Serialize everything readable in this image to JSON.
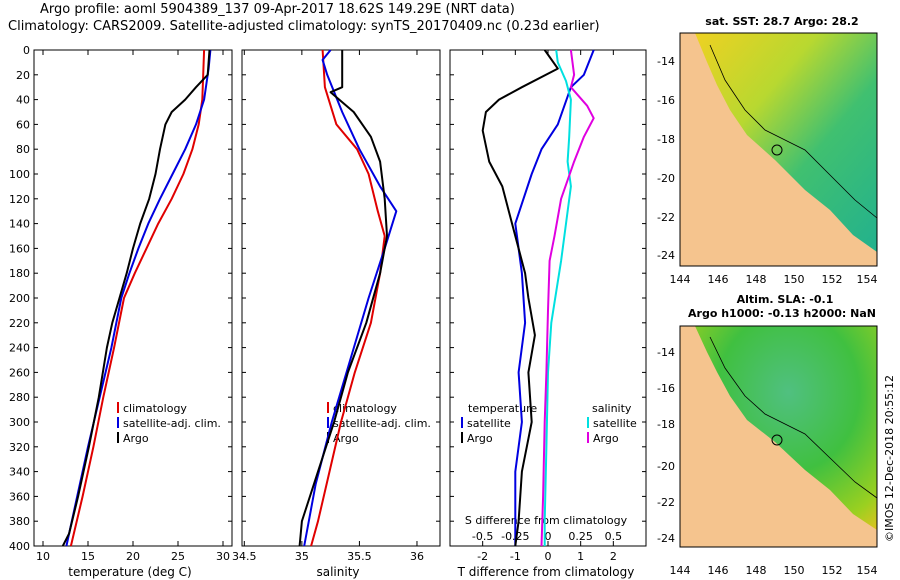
{
  "header": {
    "title_line1": "Argo profile: aoml 5904389_137 09-Apr-2017 18.62S 149.29E (NRT data)",
    "title_line2": "Climatology: CARS2009. Satellite-adjusted climatology: synTS_20170409.nc (0.23d earlier)",
    "credit": "©IMOS 12-Dec-2018 20:55:12"
  },
  "colors": {
    "climatology": "#e00000",
    "satellite": "#0000e0",
    "argo": "#000000",
    "sat_salinity": "#00e0e0",
    "clim_salinity": "#e000e0"
  },
  "chart_data": [
    {
      "type": "line",
      "title": "",
      "xlabel": "temperature (deg C)",
      "ylabel": "",
      "xlim": [
        9,
        31
      ],
      "ylim": [
        400,
        0
      ],
      "xticks": [
        10,
        15,
        20,
        25,
        30
      ],
      "yticks": [
        0,
        20,
        40,
        60,
        80,
        100,
        120,
        140,
        160,
        180,
        200,
        220,
        240,
        260,
        280,
        300,
        320,
        340,
        360,
        380,
        400
      ],
      "legend": [
        "climatology",
        "satellite-adj. clim.",
        "Argo"
      ],
      "series": [
        {
          "name": "climatology",
          "color": "#e00000",
          "points": [
            [
              27.9,
              0
            ],
            [
              27.7,
              40
            ],
            [
              27.3,
              60
            ],
            [
              26.6,
              80
            ],
            [
              25.6,
              100
            ],
            [
              24.3,
              120
            ],
            [
              22.8,
              140
            ],
            [
              21.5,
              160
            ],
            [
              20.2,
              180
            ],
            [
              19.0,
              200
            ],
            [
              17.9,
              240
            ],
            [
              16.7,
              280
            ],
            [
              15.6,
              320
            ],
            [
              14.4,
              360
            ],
            [
              13.1,
              400
            ]
          ]
        },
        {
          "name": "satellite-adj. clim.",
          "color": "#0000e0",
          "points": [
            [
              28.6,
              0
            ],
            [
              28.4,
              15
            ],
            [
              27.9,
              40
            ],
            [
              27.0,
              60
            ],
            [
              25.8,
              80
            ],
            [
              24.4,
              100
            ],
            [
              23.0,
              120
            ],
            [
              21.7,
              140
            ],
            [
              20.6,
              160
            ],
            [
              19.6,
              180
            ],
            [
              18.7,
              200
            ],
            [
              17.6,
              240
            ],
            [
              16.3,
              280
            ],
            [
              15.0,
              320
            ],
            [
              13.8,
              360
            ],
            [
              12.6,
              400
            ]
          ]
        },
        {
          "name": "Argo",
          "color": "#000000",
          "points": [
            [
              28.5,
              0
            ],
            [
              28.3,
              20
            ],
            [
              27.0,
              30
            ],
            [
              25.8,
              40
            ],
            [
              24.3,
              50
            ],
            [
              23.6,
              60
            ],
            [
              23.0,
              80
            ],
            [
              22.5,
              100
            ],
            [
              21.8,
              120
            ],
            [
              20.8,
              140
            ],
            [
              20.0,
              160
            ],
            [
              19.3,
              180
            ],
            [
              18.5,
              200
            ],
            [
              17.7,
              220
            ],
            [
              17.1,
              240
            ],
            [
              16.2,
              280
            ],
            [
              15.1,
              320
            ],
            [
              13.9,
              360
            ],
            [
              12.9,
              390
            ],
            [
              12.2,
              400
            ]
          ]
        }
      ]
    },
    {
      "type": "line",
      "title": "",
      "xlabel": "salinity",
      "ylabel": "",
      "xlim": [
        34.48,
        36.2
      ],
      "ylim": [
        400,
        0
      ],
      "xticks": [
        34.5,
        35,
        35.5,
        36
      ],
      "xtick_labels": [
        "34.5",
        "35",
        "35.5",
        "36"
      ],
      "legend": [
        "climatology",
        "satellite-adj. clim.",
        "Argo"
      ],
      "series": [
        {
          "name": "climatology",
          "color": "#e00000",
          "points": [
            [
              35.18,
              0
            ],
            [
              35.2,
              30
            ],
            [
              35.3,
              60
            ],
            [
              35.48,
              80
            ],
            [
              35.58,
              100
            ],
            [
              35.66,
              130
            ],
            [
              35.72,
              150
            ],
            [
              35.68,
              180
            ],
            [
              35.6,
              220
            ],
            [
              35.46,
              260
            ],
            [
              35.34,
              300
            ],
            [
              35.24,
              340
            ],
            [
              35.14,
              380
            ],
            [
              35.08,
              400
            ]
          ]
        },
        {
          "name": "satellite-adj. clim.",
          "color": "#0000e0",
          "points": [
            [
              35.25,
              0
            ],
            [
              35.18,
              8
            ],
            [
              35.22,
              20
            ],
            [
              35.35,
              50
            ],
            [
              35.5,
              80
            ],
            [
              35.68,
              110
            ],
            [
              35.82,
              130
            ],
            [
              35.72,
              160
            ],
            [
              35.58,
              200
            ],
            [
              35.42,
              250
            ],
            [
              35.26,
              300
            ],
            [
              35.12,
              350
            ],
            [
              35.02,
              400
            ]
          ]
        },
        {
          "name": "Argo",
          "color": "#000000",
          "points": [
            [
              35.35,
              0
            ],
            [
              35.35,
              30
            ],
            [
              35.25,
              34
            ],
            [
              35.45,
              50
            ],
            [
              35.6,
              70
            ],
            [
              35.68,
              90
            ],
            [
              35.72,
              120
            ],
            [
              35.74,
              150
            ],
            [
              35.68,
              180
            ],
            [
              35.56,
              220
            ],
            [
              35.4,
              260
            ],
            [
              35.28,
              300
            ],
            [
              35.14,
              340
            ],
            [
              35.0,
              380
            ],
            [
              34.98,
              400
            ]
          ]
        }
      ]
    },
    {
      "type": "line",
      "title": "",
      "xlabel": "T difference from climatology",
      "xlabel2": "S difference from climatology",
      "ylabel": "",
      "xlim": [
        -3,
        3
      ],
      "ylim": [
        400,
        0
      ],
      "xticks": [
        -2,
        -1,
        0,
        1,
        2
      ],
      "xtick_labels2": [
        "-0.5",
        "-0.25",
        "0",
        "0.25",
        "0.5"
      ],
      "legend_temperature": [
        "satellite",
        "Argo"
      ],
      "legend_salinity": [
        "satellite",
        "Argo"
      ],
      "legend_titles": [
        "temperature",
        "salinity"
      ],
      "series": [
        {
          "name": "temperature satellite",
          "color": "#0000e0",
          "points": [
            [
              1.4,
              0
            ],
            [
              1.1,
              20
            ],
            [
              0.7,
              30
            ],
            [
              0.3,
              60
            ],
            [
              -0.2,
              80
            ],
            [
              -0.5,
              100
            ],
            [
              -1.0,
              140
            ],
            [
              -0.8,
              180
            ],
            [
              -0.7,
              220
            ],
            [
              -0.9,
              260
            ],
            [
              -0.8,
              300
            ],
            [
              -1.0,
              340
            ],
            [
              -1.0,
              380
            ],
            [
              -1.0,
              400
            ]
          ]
        },
        {
          "name": "temperature Argo",
          "color": "#000000",
          "points": [
            [
              -0.1,
              0
            ],
            [
              0.3,
              15
            ],
            [
              -0.8,
              30
            ],
            [
              -1.5,
              40
            ],
            [
              -1.9,
              50
            ],
            [
              -2.0,
              65
            ],
            [
              -1.8,
              90
            ],
            [
              -1.4,
              110
            ],
            [
              -1.2,
              130
            ],
            [
              -1.0,
              150
            ],
            [
              -0.7,
              180
            ],
            [
              -0.6,
              200
            ],
            [
              -0.4,
              230
            ],
            [
              -0.6,
              260
            ],
            [
              -0.5,
              300
            ],
            [
              -0.8,
              340
            ],
            [
              -0.9,
              380
            ],
            [
              -1.0,
              400
            ]
          ]
        },
        {
          "name": "salinity satellite",
          "color": "#00e0e0",
          "points": [
            [
              0.25,
              0
            ],
            [
              0.3,
              10
            ],
            [
              0.55,
              25
            ],
            [
              0.7,
              40
            ],
            [
              0.65,
              70
            ],
            [
              0.6,
              90
            ],
            [
              0.7,
              110
            ],
            [
              0.55,
              140
            ],
            [
              0.4,
              170
            ],
            [
              0.1,
              220
            ],
            [
              0.0,
              260
            ],
            [
              -0.05,
              320
            ],
            [
              -0.1,
              380
            ],
            [
              -0.1,
              400
            ]
          ]
        },
        {
          "name": "salinity Argo",
          "color": "#e000e0",
          "points": [
            [
              0.7,
              0
            ],
            [
              0.8,
              20
            ],
            [
              0.7,
              30
            ],
            [
              1.2,
              45
            ],
            [
              1.4,
              55
            ],
            [
              1.1,
              70
            ],
            [
              0.8,
              90
            ],
            [
              0.4,
              120
            ],
            [
              0.2,
              150
            ],
            [
              0.05,
              170
            ],
            [
              0.0,
              210
            ],
            [
              -0.05,
              260
            ],
            [
              -0.1,
              300
            ],
            [
              -0.15,
              360
            ],
            [
              -0.2,
              400
            ]
          ]
        }
      ]
    }
  ],
  "maps": {
    "sst": {
      "title": "sat. SST: 28.7 Argo: 28.2",
      "xticks": [
        "144",
        "146",
        "148",
        "150",
        "152",
        "154"
      ],
      "yticks": [
        "-14",
        "-16",
        "-18",
        "-20",
        "-22",
        "-24"
      ]
    },
    "sla": {
      "title_line1": "Altim. SLA: -0.1",
      "title_line2": "Argo h1000: -0.13 h2000: NaN",
      "xticks": [
        "144",
        "146",
        "148",
        "150",
        "152",
        "154"
      ],
      "yticks": [
        "-14",
        "-16",
        "-18",
        "-20",
        "-22",
        "-24"
      ]
    }
  }
}
